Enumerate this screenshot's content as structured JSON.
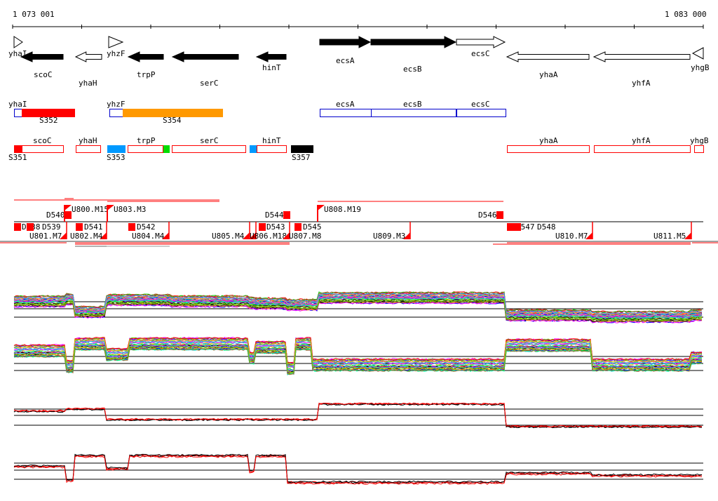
{
  "axis": {
    "start_label": "1 073 001",
    "end_label": "1 083 000"
  },
  "genes": [
    {
      "name": "yhaI",
      "strand": "+",
      "fill": "none"
    },
    {
      "name": "scoC",
      "strand": "-",
      "fill": "black"
    },
    {
      "name": "yhaH",
      "strand": "-",
      "fill": "white"
    },
    {
      "name": "yhzF",
      "strand": "+",
      "fill": "none"
    },
    {
      "name": "trpP",
      "strand": "-",
      "fill": "black"
    },
    {
      "name": "serC",
      "strand": "-",
      "fill": "black"
    },
    {
      "name": "hinT",
      "strand": "-",
      "fill": "black"
    },
    {
      "name": "ecsA",
      "strand": "+",
      "fill": "black"
    },
    {
      "name": "ecsB",
      "strand": "+",
      "fill": "black"
    },
    {
      "name": "ecsC",
      "strand": "+",
      "fill": "white"
    },
    {
      "name": "yhaA",
      "strand": "-",
      "fill": "white"
    },
    {
      "name": "yhfA",
      "strand": "-",
      "fill": "white"
    },
    {
      "name": "yhgB",
      "strand": "-",
      "fill": "none"
    }
  ],
  "plus_segments": {
    "gene_labels": [
      "yhaI",
      "yhzF",
      "ecsA",
      "ecsB",
      "ecsC"
    ],
    "segment_labels": [
      "S352",
      "S354"
    ]
  },
  "minus_segments": {
    "gene_labels": [
      "scoC",
      "yhaH",
      "trpP",
      "serC",
      "hinT",
      "yhaA",
      "yhfA",
      "yhgB"
    ],
    "segment_labels": [
      "S351",
      "S353",
      "S357"
    ]
  },
  "upper_features": [
    "D540",
    "U800.M15",
    "U803.M3",
    "D544",
    "U808.M19",
    "D546"
  ],
  "lower_features": [
    "D538",
    "D539",
    "U801.M7",
    "D541",
    "U802.M4",
    "D542",
    "U804.M4",
    "U805.M4",
    "D543",
    "U806.M18",
    "U807.M8",
    "D545",
    "U809.M3",
    "D547",
    "D548",
    "U810.M7",
    "U811.M5"
  ],
  "colors": {
    "segment_red": "#ff0000",
    "segment_orange": "#ff9900",
    "segment_blue": "#0099ff",
    "segment_green": "#00dd00",
    "outline_blue": "#0000cc",
    "trace_red": "#ff0000",
    "trace_black": "#000000"
  },
  "trace_panels": [
    {
      "style": "multicolor"
    },
    {
      "style": "multicolor"
    },
    {
      "style": "black-red"
    },
    {
      "style": "black-red"
    }
  ]
}
